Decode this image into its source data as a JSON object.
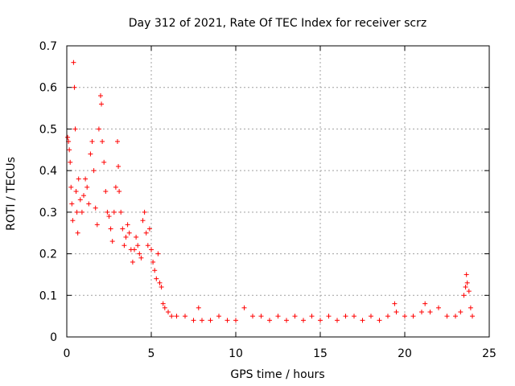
{
  "chart_data": {
    "type": "scatter",
    "title": "Day 312 of 2021, Rate Of TEC Index for receiver scrz",
    "xlabel": "GPS time / hours",
    "ylabel": "ROTI / TECUs",
    "xlim": [
      0,
      25
    ],
    "ylim": [
      0,
      0.7
    ],
    "xticks": [
      0,
      5,
      10,
      15,
      20,
      25
    ],
    "yticks": [
      0,
      0.1,
      0.2,
      0.3,
      0.4,
      0.5,
      0.6,
      0.7
    ],
    "xtick_labels": [
      "0",
      "5",
      "10",
      "15",
      "20",
      "25"
    ],
    "ytick_labels": [
      "0",
      "0.1",
      "0.2",
      "0.3",
      "0.4",
      "0.5",
      "0.6",
      "0.7"
    ],
    "grid": true,
    "marker": "+",
    "series": [
      {
        "name": "ROTI",
        "color": "#ff0000",
        "points": [
          [
            0.05,
            0.48
          ],
          [
            0.1,
            0.47
          ],
          [
            0.15,
            0.45
          ],
          [
            0.2,
            0.42
          ],
          [
            0.25,
            0.36
          ],
          [
            0.3,
            0.32
          ],
          [
            0.35,
            0.28
          ],
          [
            0.4,
            0.66
          ],
          [
            0.45,
            0.6
          ],
          [
            0.5,
            0.5
          ],
          [
            0.55,
            0.35
          ],
          [
            0.6,
            0.3
          ],
          [
            0.65,
            0.25
          ],
          [
            0.7,
            0.38
          ],
          [
            0.8,
            0.33
          ],
          [
            0.9,
            0.3
          ],
          [
            1.0,
            0.34
          ],
          [
            1.1,
            0.38
          ],
          [
            1.2,
            0.36
          ],
          [
            1.3,
            0.32
          ],
          [
            1.4,
            0.44
          ],
          [
            1.5,
            0.47
          ],
          [
            1.6,
            0.4
          ],
          [
            1.7,
            0.31
          ],
          [
            1.8,
            0.27
          ],
          [
            1.9,
            0.5
          ],
          [
            2.0,
            0.58
          ],
          [
            2.05,
            0.56
          ],
          [
            2.1,
            0.47
          ],
          [
            2.2,
            0.42
          ],
          [
            2.3,
            0.35
          ],
          [
            2.4,
            0.3
          ],
          [
            2.5,
            0.29
          ],
          [
            2.6,
            0.26
          ],
          [
            2.7,
            0.23
          ],
          [
            2.8,
            0.3
          ],
          [
            2.9,
            0.36
          ],
          [
            3.0,
            0.47
          ],
          [
            3.05,
            0.41
          ],
          [
            3.1,
            0.35
          ],
          [
            3.2,
            0.3
          ],
          [
            3.3,
            0.26
          ],
          [
            3.4,
            0.22
          ],
          [
            3.5,
            0.24
          ],
          [
            3.6,
            0.27
          ],
          [
            3.7,
            0.25
          ],
          [
            3.8,
            0.21
          ],
          [
            3.9,
            0.18
          ],
          [
            4.0,
            0.21
          ],
          [
            4.1,
            0.24
          ],
          [
            4.2,
            0.22
          ],
          [
            4.3,
            0.2
          ],
          [
            4.4,
            0.19
          ],
          [
            4.5,
            0.28
          ],
          [
            4.6,
            0.3
          ],
          [
            4.7,
            0.25
          ],
          [
            4.8,
            0.22
          ],
          [
            4.9,
            0.26
          ],
          [
            5.0,
            0.21
          ],
          [
            5.1,
            0.18
          ],
          [
            5.2,
            0.16
          ],
          [
            5.3,
            0.14
          ],
          [
            5.4,
            0.2
          ],
          [
            5.5,
            0.13
          ],
          [
            5.6,
            0.12
          ],
          [
            5.7,
            0.08
          ],
          [
            5.8,
            0.07
          ],
          [
            6.0,
            0.06
          ],
          [
            6.2,
            0.05
          ],
          [
            6.5,
            0.05
          ],
          [
            7.0,
            0.05
          ],
          [
            7.5,
            0.04
          ],
          [
            7.8,
            0.07
          ],
          [
            8.0,
            0.04
          ],
          [
            8.5,
            0.04
          ],
          [
            9.0,
            0.05
          ],
          [
            9.5,
            0.04
          ],
          [
            10.0,
            0.04
          ],
          [
            10.5,
            0.07
          ],
          [
            11.0,
            0.05
          ],
          [
            11.5,
            0.05
          ],
          [
            12.0,
            0.04
          ],
          [
            12.5,
            0.05
          ],
          [
            13.0,
            0.04
          ],
          [
            13.5,
            0.05
          ],
          [
            14.0,
            0.04
          ],
          [
            14.5,
            0.05
          ],
          [
            15.0,
            0.04
          ],
          [
            15.5,
            0.05
          ],
          [
            16.0,
            0.04
          ],
          [
            16.5,
            0.05
          ],
          [
            17.0,
            0.05
          ],
          [
            17.5,
            0.04
          ],
          [
            18.0,
            0.05
          ],
          [
            18.5,
            0.04
          ],
          [
            19.0,
            0.05
          ],
          [
            19.4,
            0.08
          ],
          [
            19.5,
            0.06
          ],
          [
            20.0,
            0.05
          ],
          [
            20.5,
            0.05
          ],
          [
            21.0,
            0.06
          ],
          [
            21.2,
            0.08
          ],
          [
            21.5,
            0.06
          ],
          [
            22.0,
            0.07
          ],
          [
            22.5,
            0.05
          ],
          [
            23.0,
            0.05
          ],
          [
            23.3,
            0.06
          ],
          [
            23.5,
            0.1
          ],
          [
            23.6,
            0.12
          ],
          [
            23.65,
            0.15
          ],
          [
            23.7,
            0.13
          ],
          [
            23.8,
            0.11
          ],
          [
            23.9,
            0.07
          ],
          [
            24.0,
            0.05
          ]
        ]
      }
    ]
  }
}
